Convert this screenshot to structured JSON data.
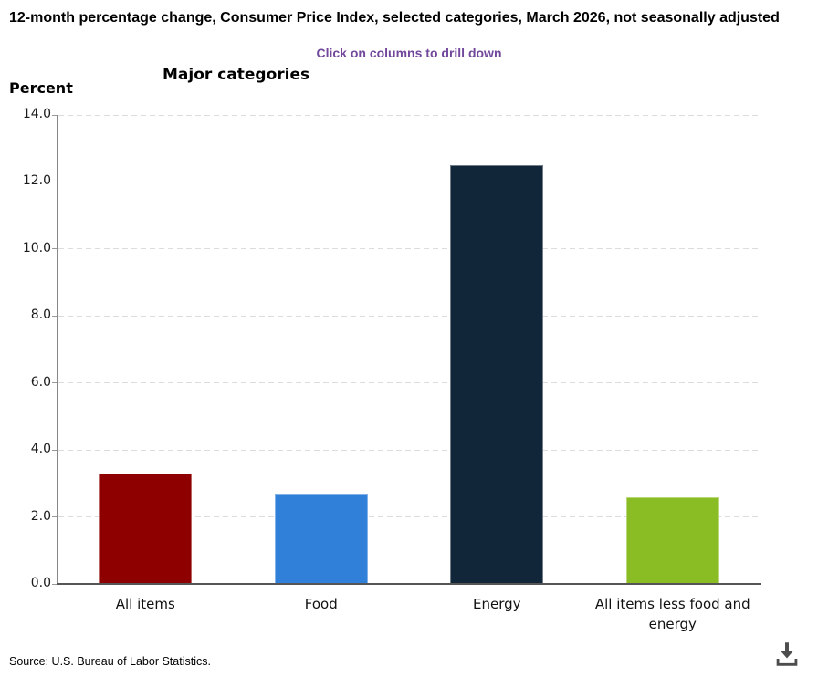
{
  "header": {
    "title": "12-month percentage change, Consumer Price Index, selected categories, March 2026, not seasonally adjusted",
    "subtitle": "Click on columns to drill down",
    "chart_title": "Major categories",
    "y_axis_unit_label": "Percent"
  },
  "chart_data": {
    "type": "bar",
    "title": "Major categories",
    "categories": [
      "All items",
      "Food",
      "Energy",
      "All items less food and energy"
    ],
    "values": [
      3.3,
      2.7,
      12.5,
      2.6
    ],
    "bar_colors": [
      "#8e0000",
      "#307fd9",
      "#122639",
      "#8abd24"
    ],
    "xlabel": "",
    "ylabel": "Percent",
    "ylim": [
      0,
      14
    ],
    "ytick_step": 2,
    "ytick_labels": [
      "0.0",
      "2.0",
      "4.0",
      "6.0",
      "8.0",
      "10.0",
      "12.0",
      "14.0"
    ],
    "grid": "horizontal-dashed",
    "legend": "none"
  },
  "footer": {
    "source": "Source: U.S. Bureau of Labor Statistics.",
    "download_icon": "download-icon"
  },
  "colors": {
    "subtitle_purple": "#71489b",
    "gridline": "#dcdcdc",
    "y_axis_line": "#888888",
    "x_axis_line": "#555555",
    "tick_mark": "#999999",
    "icon_gray": "#4d4d4d"
  }
}
